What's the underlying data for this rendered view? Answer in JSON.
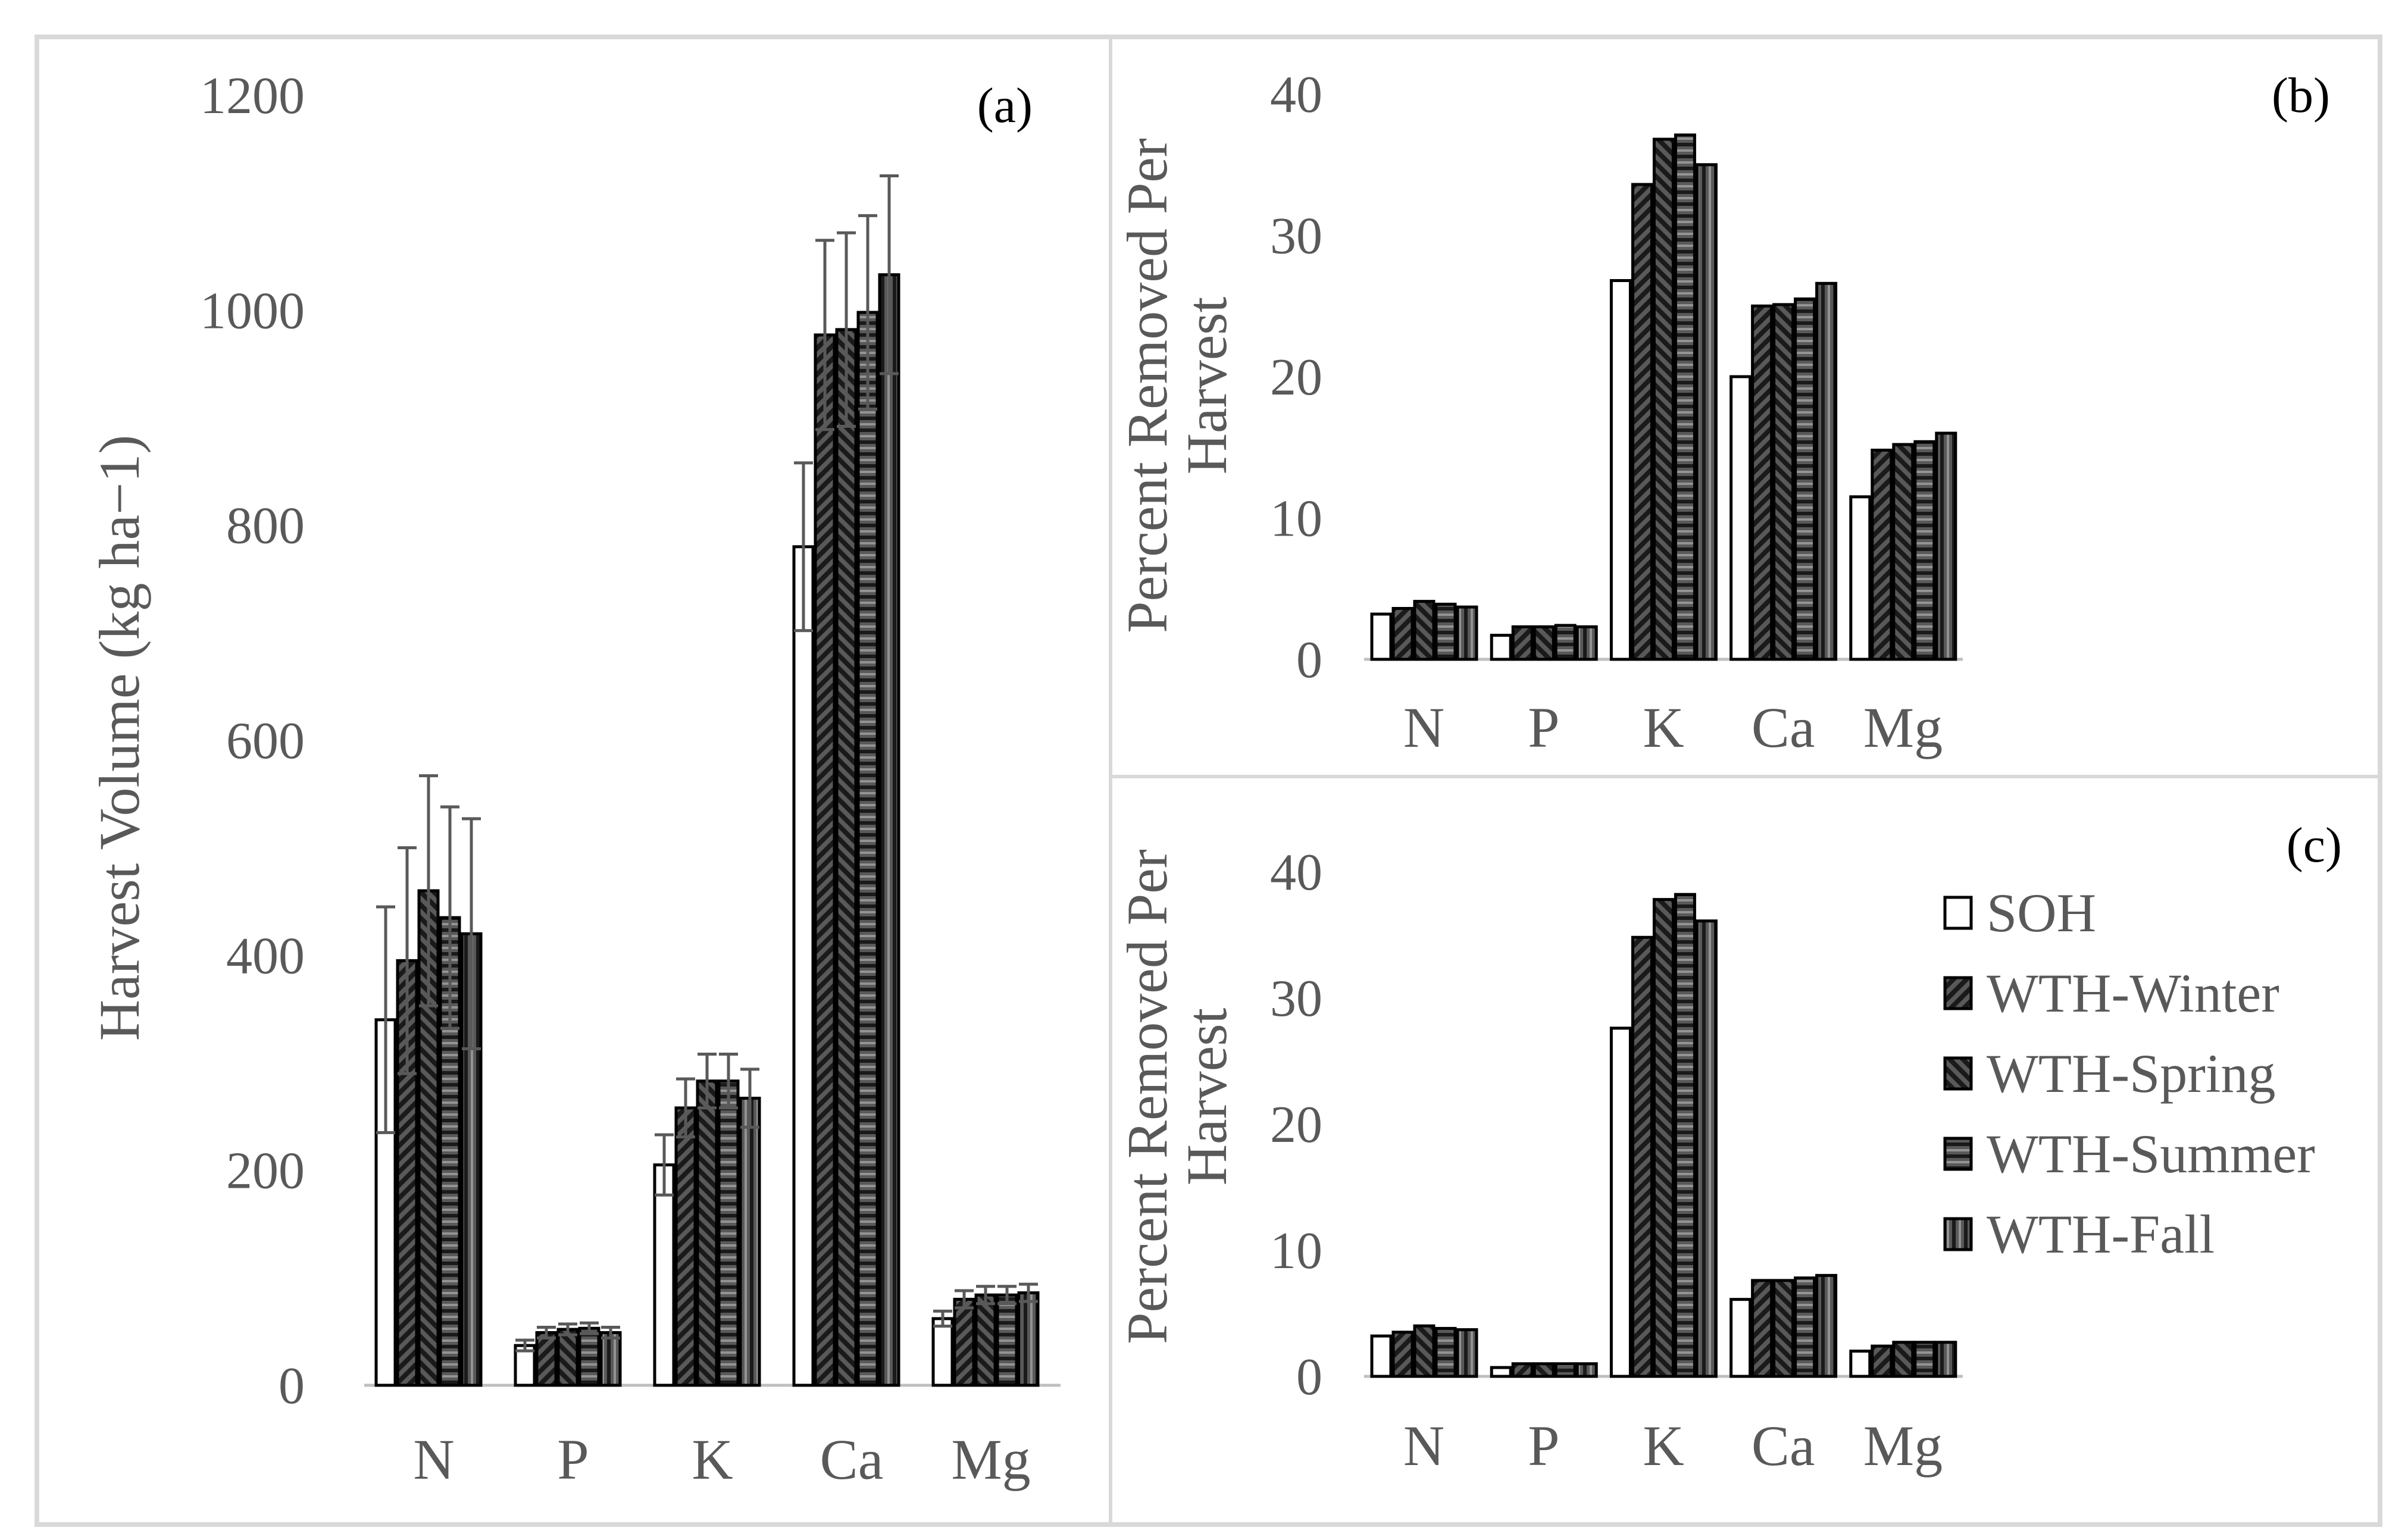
{
  "chart_data": [
    {
      "type": "bar",
      "panel_label": "(a)",
      "ylabel": "Harvest Volume (kg ha−1)",
      "xlabel": "",
      "ylim": [
        0,
        1200
      ],
      "yticks": [
        0,
        200,
        400,
        600,
        800,
        1000,
        1200
      ],
      "categories": [
        "N",
        "P",
        "K",
        "Ca",
        "Mg"
      ],
      "series": [
        {
          "name": "SOH",
          "values": [
            340,
            37,
            205,
            780,
            62
          ],
          "errors": [
            105,
            5,
            28,
            78,
            7
          ]
        },
        {
          "name": "WTH-Winter",
          "values": [
            395,
            49,
            258,
            977,
            80
          ],
          "errors": [
            105,
            5,
            27,
            88,
            8
          ]
        },
        {
          "name": "WTH-Spring",
          "values": [
            460,
            52,
            283,
            982,
            84
          ],
          "errors": [
            107,
            5,
            25,
            90,
            8
          ]
        },
        {
          "name": "WTH-Summer",
          "values": [
            435,
            53,
            283,
            998,
            84
          ],
          "errors": [
            103,
            5,
            25,
            90,
            8
          ]
        },
        {
          "name": "WTH-Fall",
          "values": [
            420,
            49,
            267,
            1033,
            86
          ],
          "errors": [
            107,
            5,
            27,
            92,
            8
          ]
        }
      ]
    },
    {
      "type": "bar",
      "panel_label": "(b)",
      "ylabel": "Percent Removed Per Harvest",
      "xlabel": "",
      "ylim": [
        0,
        40
      ],
      "yticks": [
        0,
        10,
        20,
        30,
        40
      ],
      "categories": [
        "N",
        "P",
        "K",
        "Ca",
        "Mg"
      ],
      "series": [
        {
          "name": "SOH",
          "values": [
            3.2,
            1.7,
            26.8,
            20.0,
            11.5
          ]
        },
        {
          "name": "WTH-Winter",
          "values": [
            3.6,
            2.3,
            33.6,
            25.0,
            14.8
          ]
        },
        {
          "name": "WTH-Spring",
          "values": [
            4.1,
            2.3,
            36.8,
            25.1,
            15.2
          ]
        },
        {
          "name": "WTH-Summer",
          "values": [
            3.9,
            2.4,
            37.1,
            25.5,
            15.4
          ]
        },
        {
          "name": "WTH-Fall",
          "values": [
            3.7,
            2.3,
            35.0,
            26.6,
            16.0
          ]
        }
      ]
    },
    {
      "type": "bar",
      "panel_label": "(c)",
      "ylabel": "Percent Removed Per Harvest",
      "xlabel": "",
      "ylim": [
        0,
        40
      ],
      "yticks": [
        0,
        10,
        20,
        30,
        40
      ],
      "categories": [
        "N",
        "P",
        "K",
        "Ca",
        "Mg"
      ],
      "series": [
        {
          "name": "SOH",
          "values": [
            3.2,
            0.7,
            27.6,
            6.1,
            2.0
          ]
        },
        {
          "name": "WTH-Winter",
          "values": [
            3.5,
            1.0,
            34.8,
            7.6,
            2.4
          ]
        },
        {
          "name": "WTH-Spring",
          "values": [
            4.0,
            1.0,
            37.8,
            7.6,
            2.7
          ]
        },
        {
          "name": "WTH-Summer",
          "values": [
            3.8,
            1.0,
            38.2,
            7.8,
            2.7
          ]
        },
        {
          "name": "WTH-Fall",
          "values": [
            3.7,
            1.0,
            36.1,
            8.0,
            2.7
          ]
        }
      ]
    }
  ],
  "legend": {
    "entries": [
      "SOH",
      "WTH-Winter",
      "WTH-Spring",
      "WTH-Summer",
      "WTH-Fall"
    ],
    "placement": "right of panel (c)"
  },
  "colors": {
    "axis_text": "#595959",
    "bar_fill": "#595959",
    "bar_stroke": "#000000",
    "soh_fill": "#ffffff",
    "frame": "#d9d9d9",
    "baseline": "#bfbfbf"
  }
}
